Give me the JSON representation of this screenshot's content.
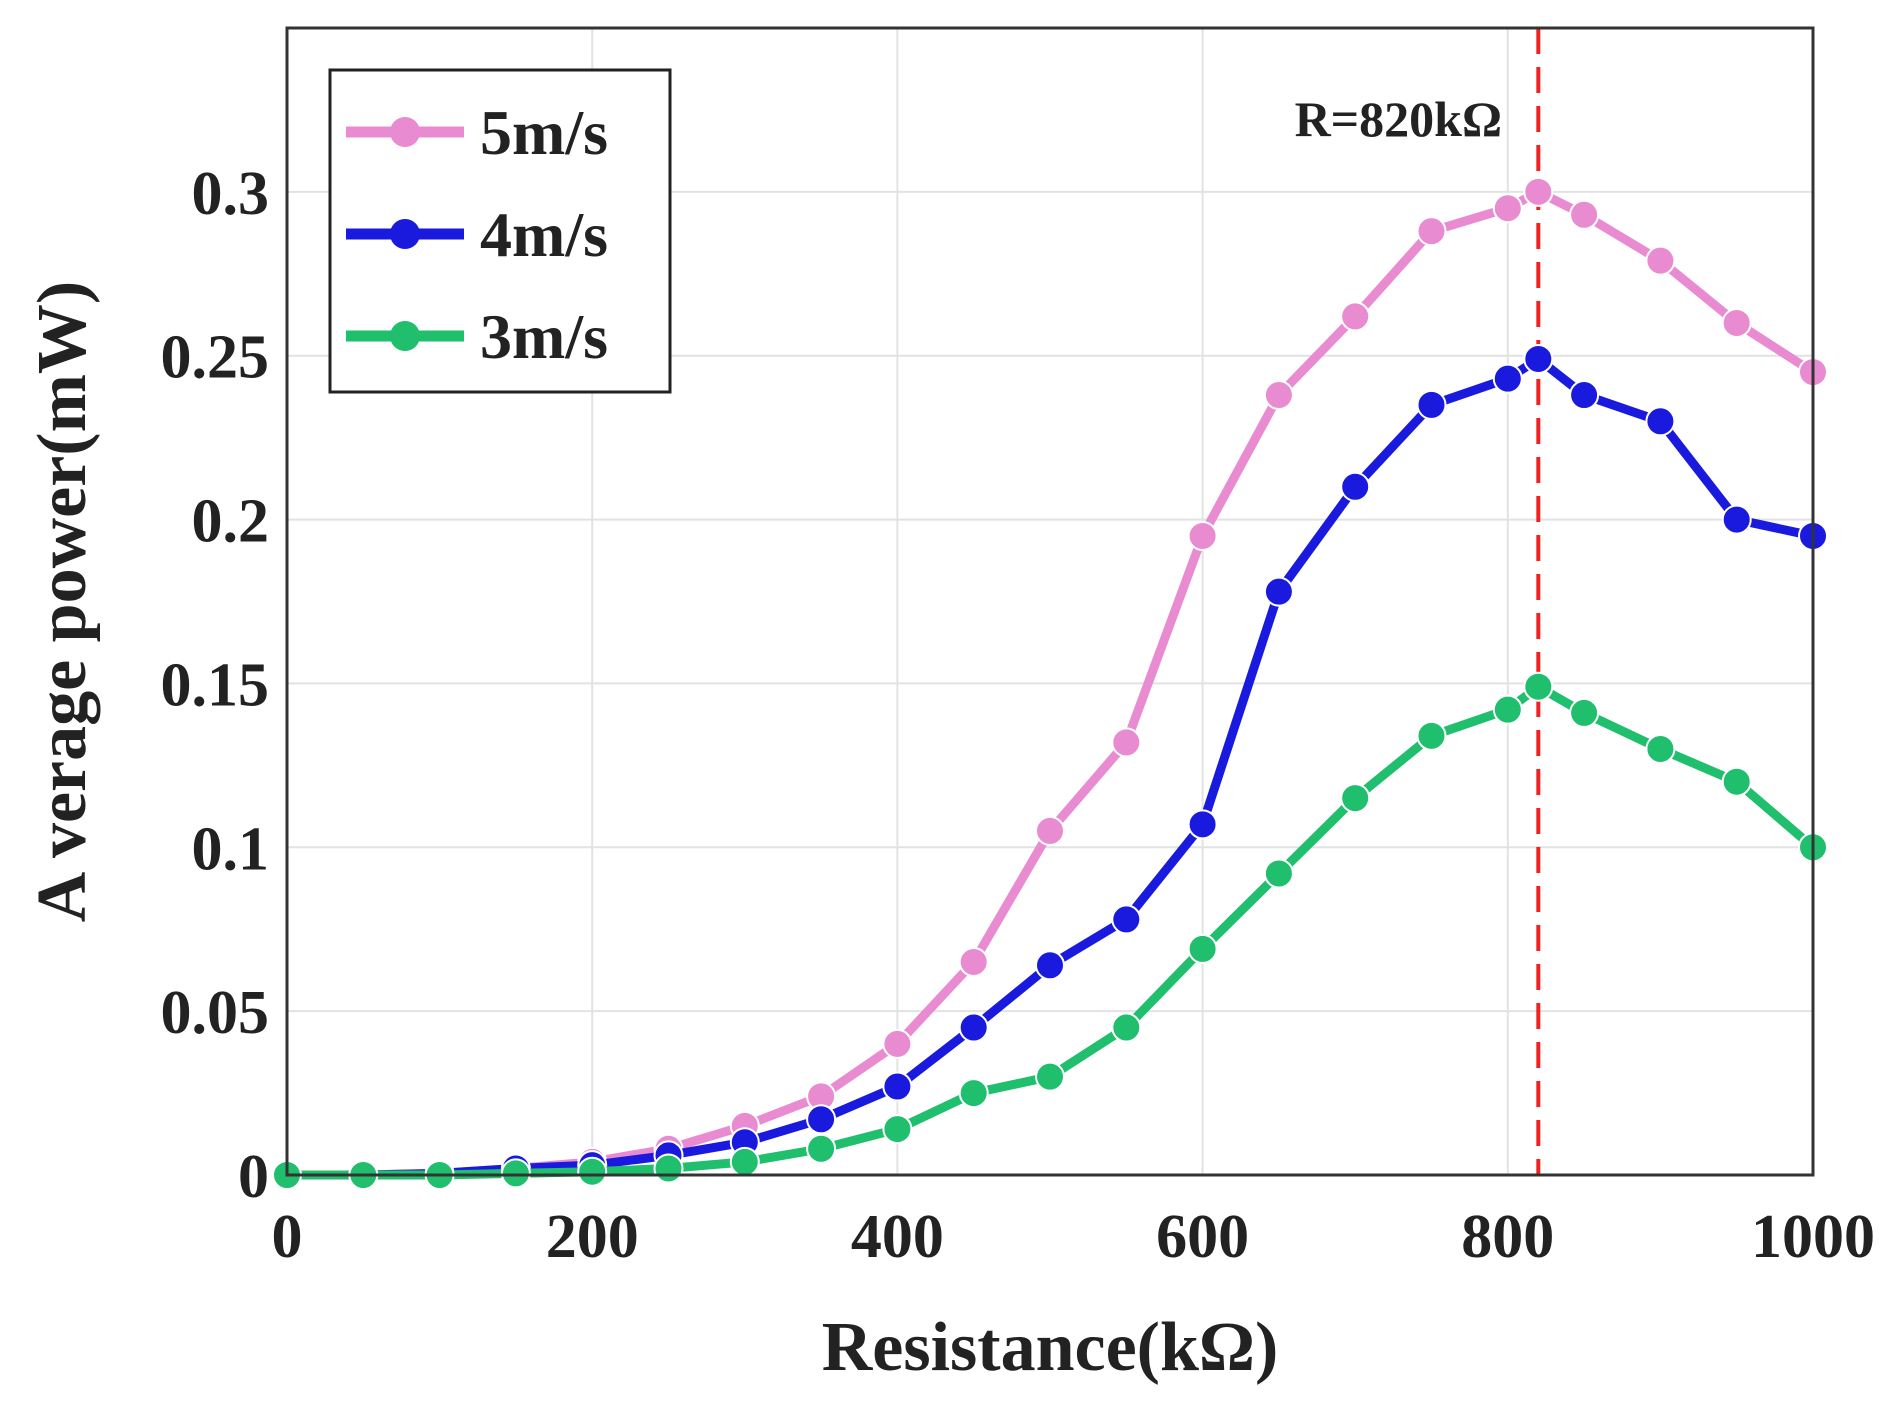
{
  "chart_data": {
    "type": "line",
    "xlabel": "Resistance(kΩ)",
    "ylabel": "A verage power(mW)",
    "xlim": [
      0,
      1000
    ],
    "ylim": [
      0,
      0.35
    ],
    "x_ticks": [
      0,
      200,
      400,
      600,
      800,
      1000
    ],
    "x_tick_labels": [
      "0",
      "200",
      "400",
      "600",
      "800",
      "1000"
    ],
    "y_ticks": [
      0,
      0.05,
      0.1,
      0.15,
      0.2,
      0.25,
      0.3
    ],
    "y_tick_labels": [
      "0",
      "0.05",
      "0.1",
      "0.15",
      "0.2",
      "0.25",
      "0.3"
    ],
    "grid": true,
    "legend_position": "top-left",
    "x": [
      0,
      50,
      100,
      150,
      200,
      250,
      300,
      350,
      400,
      450,
      500,
      550,
      600,
      650,
      700,
      750,
      800,
      820,
      850,
      900,
      950,
      1000
    ],
    "series": [
      {
        "name": "5m/s",
        "color": "#e88bd1",
        "values": [
          0,
          0,
          0.0005,
          0.002,
          0.004,
          0.008,
          0.015,
          0.024,
          0.04,
          0.065,
          0.105,
          0.132,
          0.195,
          0.238,
          0.262,
          0.288,
          0.295,
          0.3,
          0.293,
          0.279,
          0.26,
          0.245
        ]
      },
      {
        "name": "4m/s",
        "color": "#1a1adf",
        "values": [
          0,
          0,
          0.0005,
          0.002,
          0.003,
          0.006,
          0.01,
          0.017,
          0.027,
          0.045,
          0.064,
          0.078,
          0.107,
          0.178,
          0.21,
          0.235,
          0.243,
          0.249,
          0.238,
          0.23,
          0.2,
          0.195
        ]
      },
      {
        "name": "3m/s",
        "color": "#1fbf6e",
        "values": [
          0,
          0,
          0,
          0.0005,
          0.001,
          0.002,
          0.004,
          0.008,
          0.014,
          0.025,
          0.03,
          0.045,
          0.069,
          0.092,
          0.115,
          0.134,
          0.142,
          0.149,
          0.141,
          0.13,
          0.12,
          0.1
        ]
      }
    ],
    "reference_line": {
      "x": 820,
      "label": "R=820kΩ",
      "color": "#ee2222",
      "style": "dashed"
    }
  }
}
